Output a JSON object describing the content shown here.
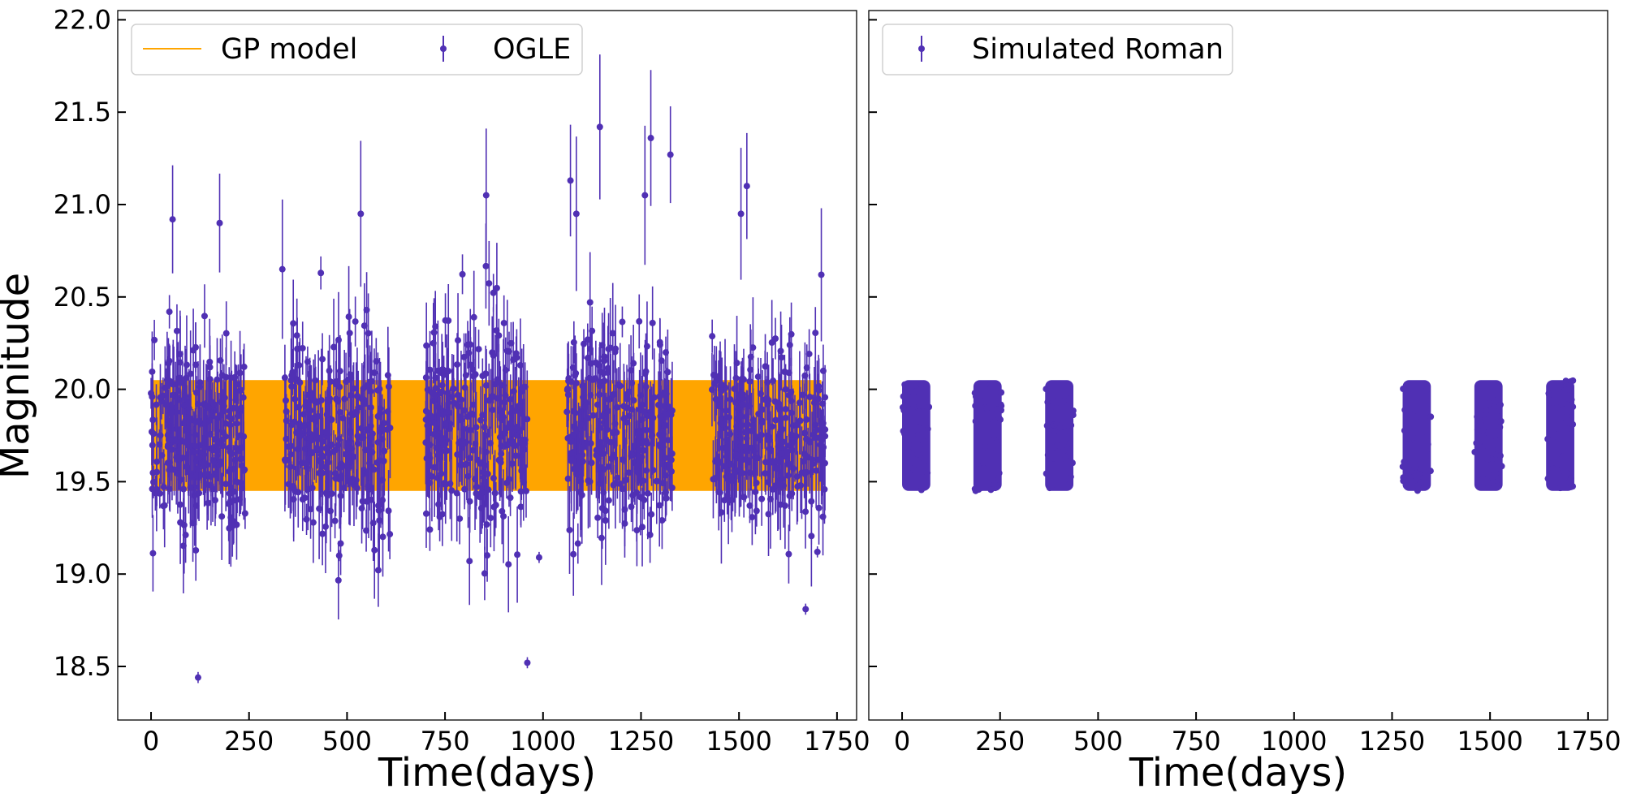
{
  "figure": {
    "ylabel": "Magnitude",
    "xlabel": "Time(days)"
  },
  "colors": {
    "points": "#5030b4",
    "model": "#ffa500",
    "axis": "#000000"
  },
  "chart_data": [
    {
      "type": "scatter",
      "panel": "left",
      "xlabel": "Time(days)",
      "ylabel": "Magnitude",
      "xlim": [
        -85,
        1800
      ],
      "ylim": [
        18.21,
        22.05
      ],
      "y_inverted": false,
      "xticks": [
        0,
        250,
        500,
        750,
        1000,
        1250,
        1500,
        1750
      ],
      "yticks": [
        18.5,
        19.0,
        19.5,
        20.0,
        20.5,
        21.0,
        21.5,
        22.0
      ],
      "ytick_labels": [
        "18.5",
        "19.0",
        "19.5",
        "20.0",
        "20.5",
        "21.0",
        "21.5",
        "22.0"
      ],
      "legend": {
        "placement": "top-left",
        "columns": 2,
        "entries": [
          {
            "label": "GP model",
            "marker": "line",
            "color": "#ffa500"
          },
          {
            "label": "OGLE",
            "marker": "errorbar",
            "color": "#5030b4"
          }
        ]
      },
      "model_band": {
        "name": "GP model",
        "x_range": [
          0,
          1710
        ],
        "y_range": [
          19.45,
          20.05
        ],
        "color": "#ffa500"
      },
      "seasons": [
        {
          "x_start": 0,
          "x_end": 240,
          "y_center": 19.75,
          "y_spread": 0.55
        },
        {
          "x_start": 340,
          "x_end": 610,
          "y_center": 19.75,
          "y_spread": 0.6
        },
        {
          "x_start": 700,
          "x_end": 960,
          "y_center": 19.8,
          "y_spread": 0.65
        },
        {
          "x_start": 1060,
          "x_end": 1330,
          "y_center": 19.8,
          "y_spread": 0.65
        },
        {
          "x_start": 1430,
          "x_end": 1720,
          "y_center": 19.75,
          "y_spread": 0.55
        }
      ],
      "outliers": [
        {
          "x": 120,
          "y": 18.44
        },
        {
          "x": 960,
          "y": 18.52
        },
        {
          "x": 1670,
          "y": 18.81
        },
        {
          "x": 55,
          "y": 20.92
        },
        {
          "x": 175,
          "y": 20.9
        },
        {
          "x": 335,
          "y": 20.65
        },
        {
          "x": 535,
          "y": 20.95
        },
        {
          "x": 855,
          "y": 21.05
        },
        {
          "x": 1070,
          "y": 21.13
        },
        {
          "x": 1085,
          "y": 20.95
        },
        {
          "x": 1145,
          "y": 21.42
        },
        {
          "x": 1260,
          "y": 21.05
        },
        {
          "x": 1275,
          "y": 21.36
        },
        {
          "x": 1325,
          "y": 21.27
        },
        {
          "x": 1505,
          "y": 20.95
        },
        {
          "x": 1520,
          "y": 21.1
        },
        {
          "x": 1710,
          "y": 20.62
        },
        {
          "x": 990,
          "y": 19.09
        },
        {
          "x": 480,
          "y": 19.1
        },
        {
          "x": 1700,
          "y": 19.12
        }
      ]
    },
    {
      "type": "scatter",
      "panel": "right",
      "xlabel": "Time(days)",
      "xlim": [
        -85,
        1800
      ],
      "ylim": [
        18.21,
        22.05
      ],
      "xticks": [
        0,
        250,
        500,
        750,
        1000,
        1250,
        1500,
        1750
      ],
      "shares_y_with_left": true,
      "legend": {
        "placement": "top-left",
        "entries": [
          {
            "label": "Simulated Roman",
            "marker": "errorbar",
            "color": "#5030b4"
          }
        ]
      },
      "seasons": [
        {
          "x_start": 0,
          "x_end": 72,
          "y_range": [
            19.45,
            20.05
          ]
        },
        {
          "x_start": 182,
          "x_end": 254,
          "y_range": [
            19.45,
            20.05
          ]
        },
        {
          "x_start": 365,
          "x_end": 437,
          "y_range": [
            19.45,
            20.05
          ]
        },
        {
          "x_start": 1277,
          "x_end": 1349,
          "y_range": [
            19.45,
            20.05
          ]
        },
        {
          "x_start": 1460,
          "x_end": 1532,
          "y_range": [
            19.45,
            20.05
          ]
        },
        {
          "x_start": 1643,
          "x_end": 1715,
          "y_range": [
            19.45,
            20.05
          ]
        }
      ]
    }
  ]
}
